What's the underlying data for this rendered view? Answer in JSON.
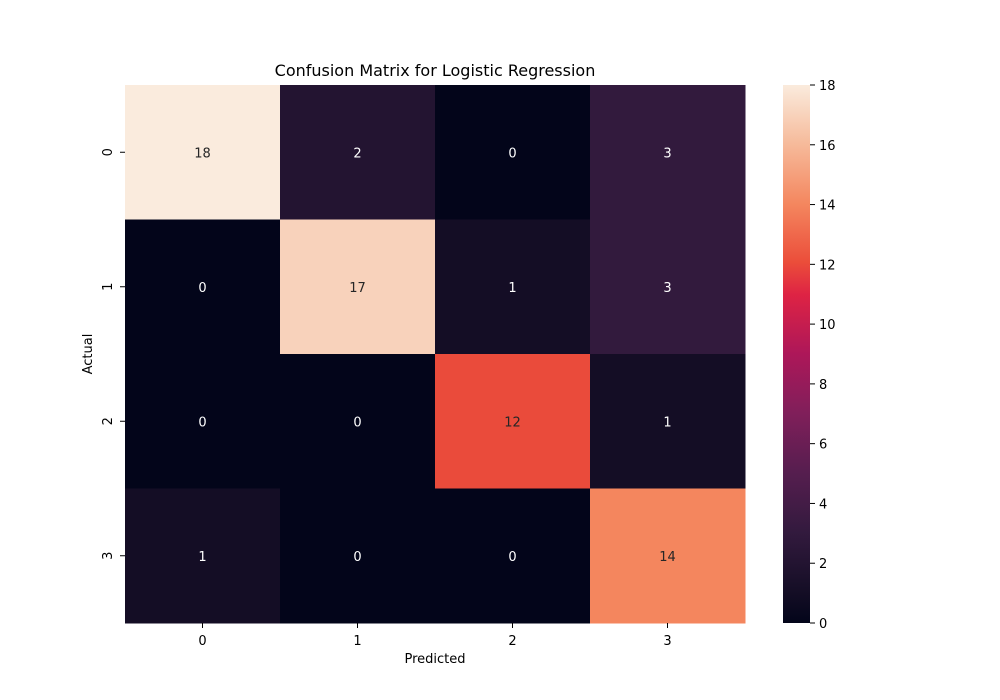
{
  "chart_data": {
    "type": "heatmap",
    "title": "Confusion Matrix for Logistic Regression",
    "xlabel": "Predicted",
    "ylabel": "Actual",
    "x_categories": [
      "0",
      "1",
      "2",
      "3"
    ],
    "y_categories": [
      "0",
      "1",
      "2",
      "3"
    ],
    "values": [
      [
        18,
        2,
        0,
        3
      ],
      [
        0,
        17,
        1,
        3
      ],
      [
        0,
        0,
        12,
        1
      ],
      [
        1,
        0,
        0,
        14
      ]
    ],
    "colorbar": {
      "range": [
        0,
        18
      ],
      "ticks": [
        "0",
        "2",
        "4",
        "6",
        "8",
        "10",
        "12",
        "14",
        "16",
        "18"
      ],
      "colormap": "rocket"
    },
    "grid": false,
    "legend": "colorbar-right"
  }
}
